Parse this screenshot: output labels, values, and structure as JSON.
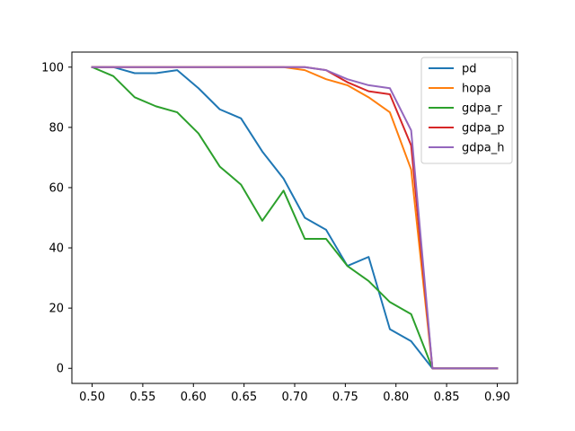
{
  "chart_data": {
    "type": "line",
    "title": "",
    "xlabel": "",
    "ylabel": "",
    "xlim": [
      0.48,
      0.92
    ],
    "ylim": [
      -5,
      105
    ],
    "grid": false,
    "legend_position": "top-right",
    "x_ticks": [
      0.5,
      0.55,
      0.6,
      0.65,
      0.7,
      0.75,
      0.8,
      0.85,
      0.9
    ],
    "x_tick_labels": [
      "0.50",
      "0.55",
      "0.60",
      "0.65",
      "0.70",
      "0.75",
      "0.80",
      "0.85",
      "0.90"
    ],
    "y_ticks": [
      0,
      20,
      40,
      60,
      80,
      100
    ],
    "y_tick_labels": [
      "0",
      "20",
      "40",
      "60",
      "80",
      "100"
    ],
    "x": [
      0.5,
      0.521,
      0.542,
      0.563,
      0.584,
      0.605,
      0.626,
      0.647,
      0.668,
      0.689,
      0.71,
      0.731,
      0.752,
      0.773,
      0.794,
      0.815,
      0.836,
      0.857,
      0.878,
      0.9
    ],
    "series": [
      {
        "name": "pd",
        "color": "#1f77b4",
        "values": [
          100,
          100,
          98,
          98,
          99,
          93,
          86,
          83,
          72,
          63,
          50,
          46,
          34,
          37,
          13,
          9,
          0,
          0,
          0,
          0
        ]
      },
      {
        "name": "hopa",
        "color": "#ff7f0e",
        "values": [
          100,
          100,
          100,
          100,
          100,
          100,
          100,
          100,
          100,
          100,
          99,
          96,
          94,
          90,
          85,
          66,
          0,
          0,
          0,
          0
        ]
      },
      {
        "name": "gdpa_r",
        "color": "#2ca02c",
        "values": [
          100,
          97,
          90,
          87,
          85,
          78,
          67,
          61,
          49,
          59,
          43,
          43,
          34,
          29,
          22,
          18,
          0,
          0,
          0,
          0
        ]
      },
      {
        "name": "gdpa_p",
        "color": "#d62728",
        "values": [
          100,
          100,
          100,
          100,
          100,
          100,
          100,
          100,
          100,
          100,
          100,
          99,
          95,
          92,
          91,
          74,
          0,
          0,
          0,
          0
        ]
      },
      {
        "name": "gdpa_h",
        "color": "#9467bd",
        "values": [
          100,
          100,
          100,
          100,
          100,
          100,
          100,
          100,
          100,
          100,
          100,
          99,
          96,
          94,
          93,
          79,
          0,
          0,
          0,
          0
        ]
      }
    ]
  }
}
